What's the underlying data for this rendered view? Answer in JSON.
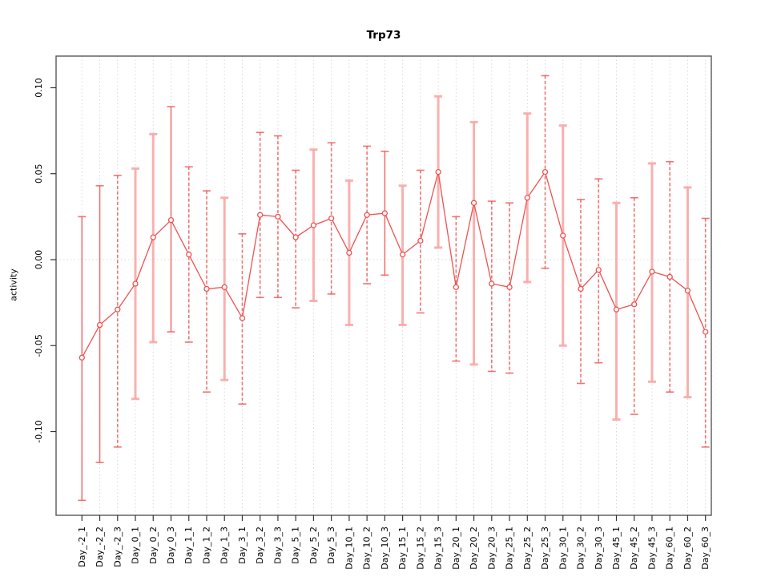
{
  "title": "Trp73",
  "ylabel": "activity",
  "colors": {
    "series": "#ee5250",
    "error_bar": "#ee5250",
    "error_bar_light": "#f8a8a6",
    "grid": "#d9d9d9",
    "zero_line": "#dcdcdc",
    "frame": "#595959",
    "tick": "#333333",
    "text": "#000000",
    "background": "#ffffff"
  },
  "chart_data": {
    "type": "line",
    "title": "Trp73",
    "xlabel": "",
    "ylabel": "activity",
    "legend": "none",
    "grid": "vertical dotted gridline at every category; dotted horizontal line at 0",
    "marker": "open-circle",
    "ylim": [
      -0.1487,
      0.1184
    ],
    "yticks": [
      0.1,
      0.05,
      0.0,
      -0.05,
      -0.1
    ],
    "ytick_labels": [
      "0.10",
      "0.05",
      "0.00",
      "-0.05",
      "-0.10"
    ],
    "categories": [
      "Day_-2_1",
      "Day_-2_2",
      "Day_-2_3",
      "Day_0_1",
      "Day_0_2",
      "Day_0_3",
      "Day_1_1",
      "Day_1_2",
      "Day_1_3",
      "Day_3_1",
      "Day_3_2",
      "Day_3_3",
      "Day_5_1",
      "Day_5_2",
      "Day_5_3",
      "Day_10_1",
      "Day_10_2",
      "Day_10_3",
      "Day_15_1",
      "Day_15_2",
      "Day_15_3",
      "Day_20_1",
      "Day_20_2",
      "Day_20_3",
      "Day_25_1",
      "Day_25_2",
      "Day_25_3",
      "Day_30_1",
      "Day_30_2",
      "Day_30_3",
      "Day_45_1",
      "Day_45_2",
      "Day_45_3",
      "Day_60_1",
      "Day_60_2",
      "Day_60_3"
    ],
    "series": [
      {
        "name": "activity",
        "values": [
          -0.057,
          -0.038,
          -0.029,
          -0.014,
          0.013,
          0.023,
          0.003,
          -0.017,
          -0.016,
          -0.034,
          0.026,
          0.025,
          0.013,
          0.02,
          0.024,
          0.004,
          0.026,
          0.027,
          0.003,
          0.011,
          0.051,
          -0.016,
          0.033,
          -0.014,
          -0.016,
          0.036,
          0.051,
          0.014,
          -0.017,
          -0.006,
          -0.029,
          -0.026,
          -0.007,
          -0.01,
          -0.018,
          -0.042
        ]
      }
    ],
    "error_high": [
      0.025,
      0.043,
      0.049,
      0.053,
      0.073,
      0.089,
      0.054,
      0.04,
      0.036,
      0.015,
      0.074,
      0.072,
      0.052,
      0.064,
      0.068,
      0.046,
      0.066,
      0.063,
      0.043,
      0.052,
      0.095,
      0.025,
      0.08,
      0.034,
      0.033,
      0.085,
      0.107,
      0.078,
      0.035,
      0.047,
      0.033,
      0.036,
      0.056,
      0.057,
      0.042,
      0.024
    ],
    "error_low": [
      -0.14,
      -0.118,
      -0.109,
      -0.081,
      -0.048,
      -0.042,
      -0.048,
      -0.077,
      -0.07,
      -0.084,
      -0.022,
      -0.022,
      -0.028,
      -0.024,
      -0.02,
      -0.038,
      -0.014,
      -0.009,
      -0.038,
      -0.031,
      0.007,
      -0.059,
      -0.061,
      -0.065,
      -0.066,
      -0.013,
      -0.005,
      -0.05,
      -0.072,
      -0.06,
      -0.093,
      -0.09,
      -0.071,
      -0.077,
      -0.08,
      -0.109
    ],
    "bar_styles": [
      "solid",
      "solid",
      "dashed",
      "thick",
      "thick",
      "solid",
      "dashed",
      "dashed",
      "thick",
      "dashed",
      "dashed",
      "dashed",
      "dashed",
      "thick",
      "dashed",
      "thick",
      "dashed",
      "solid",
      "thick",
      "dashed",
      "thick",
      "dashed",
      "thick",
      "dashed",
      "dashed",
      "thick",
      "dashed",
      "thick",
      "dashed",
      "dashed",
      "thick",
      "dashed",
      "thick",
      "dashed",
      "thick",
      "dashed"
    ]
  }
}
